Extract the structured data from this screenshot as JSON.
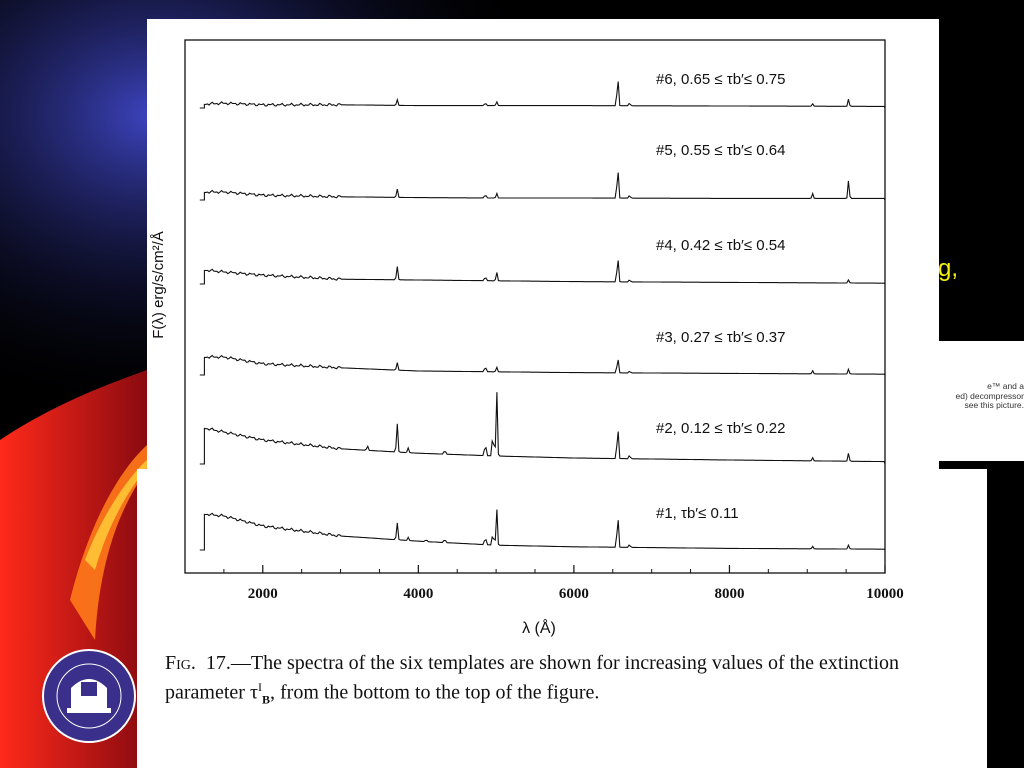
{
  "slide": {
    "bleed_text": "g,",
    "quicktime_lines": [
      "e™ and a",
      "ed) decompressor",
      "see this picture."
    ],
    "logo_text": "MAX-PLANCK-INSTITUT FÜR ASTRONOMIE HEIDELBERG · CENTRO ASTRONÓMICO HISPANO ALEMÁN ALMERÍA"
  },
  "colors": {
    "background": "#000000",
    "swoosh_red": "#e0141a",
    "swoosh_orange": "#ff7a1a",
    "swoosh_blue": "#2a2f9c",
    "text_yellow": "#f5f10a",
    "logo_purple": "#3a2f8a"
  },
  "figure": {
    "caption_label": "Fig.",
    "caption_number": "17.",
    "caption_text": "—The spectra of the six templates are shown for increasing values of the extinction parameter τ",
    "caption_sup": "I",
    "caption_sub": "B",
    "caption_end": ", from the bottom to the top of the figure."
  },
  "chart_data": {
    "type": "line",
    "title": "",
    "xlabel": "λ (Å)",
    "ylabel": "F(λ) erg/s/cm²/Å",
    "xlim": [
      1000,
      10000
    ],
    "xticks": [
      2000,
      4000,
      6000,
      8000,
      10000
    ],
    "xtick_labels": [
      "2000",
      "4000",
      "6000",
      "8000",
      "10000"
    ],
    "grid": false,
    "series": [
      {
        "name": "#1, τb′≤ 0.11",
        "label": "#1, τb′≤ 0.11",
        "start": 1250,
        "end": 10000,
        "offset": 0.0,
        "continuum": [
          [
            1250,
            0.9
          ],
          [
            1500,
            0.85
          ],
          [
            2000,
            0.6
          ],
          [
            3000,
            0.35
          ],
          [
            4000,
            0.22
          ],
          [
            5000,
            0.12
          ],
          [
            6000,
            0.08
          ],
          [
            8000,
            0.04
          ],
          [
            10000,
            0.02
          ]
        ],
        "lines": [
          [
            3727,
            0.45
          ],
          [
            3869,
            0.08
          ],
          [
            4101,
            0.06
          ],
          [
            4340,
            0.1
          ],
          [
            4861,
            0.22
          ],
          [
            4959,
            0.35
          ],
          [
            5007,
            0.95
          ],
          [
            6563,
            0.95
          ],
          [
            6717,
            0.08
          ],
          [
            9069,
            0.06
          ],
          [
            9532,
            0.1
          ]
        ]
      },
      {
        "name": "#2, 0.12 ≤ τb′≤ 0.22",
        "label": "#2, 0.12 ≤ τb′≤ 0.22",
        "start": 1250,
        "end": 10000,
        "offset": 0.0,
        "continuum": [
          [
            1250,
            0.9
          ],
          [
            1500,
            0.8
          ],
          [
            2000,
            0.6
          ],
          [
            3000,
            0.38
          ],
          [
            4000,
            0.27
          ],
          [
            5000,
            0.2
          ],
          [
            6000,
            0.15
          ],
          [
            8000,
            0.1
          ],
          [
            10000,
            0.06
          ]
        ],
        "lines": [
          [
            3345,
            0.12
          ],
          [
            3727,
            0.75
          ],
          [
            3869,
            0.12
          ],
          [
            4340,
            0.12
          ],
          [
            4861,
            0.35
          ],
          [
            4959,
            0.65
          ],
          [
            5007,
            1.7
          ],
          [
            6563,
            0.95
          ],
          [
            6717,
            0.1
          ],
          [
            9069,
            0.08
          ],
          [
            9532,
            0.2
          ]
        ]
      },
      {
        "name": "#3, 0.27 ≤ τb′≤ 0.37",
        "label": "#3, 0.27 ≤ τb′≤ 0.37",
        "start": 1250,
        "end": 10000,
        "offset": 0.0,
        "continuum": [
          [
            1250,
            0.45
          ],
          [
            1500,
            0.45
          ],
          [
            2000,
            0.28
          ],
          [
            3000,
            0.18
          ],
          [
            4000,
            0.1
          ],
          [
            5000,
            0.08
          ],
          [
            6000,
            0.06
          ],
          [
            8000,
            0.04
          ],
          [
            10000,
            0.02
          ]
        ],
        "lines": [
          [
            3727,
            0.2
          ],
          [
            4861,
            0.15
          ],
          [
            5007,
            0.12
          ],
          [
            6563,
            0.45
          ],
          [
            6717,
            0.05
          ],
          [
            9069,
            0.08
          ],
          [
            9532,
            0.12
          ]
        ]
      },
      {
        "name": "#4, 0.42 ≤ τb′≤ 0.54",
        "label": "#4, 0.42 ≤ τb′≤ 0.54",
        "start": 1250,
        "end": 10000,
        "offset": 0.0,
        "continuum": [
          [
            1250,
            0.35
          ],
          [
            1500,
            0.3
          ],
          [
            2000,
            0.22
          ],
          [
            3000,
            0.12
          ],
          [
            4000,
            0.1
          ],
          [
            5000,
            0.08
          ],
          [
            6000,
            0.06
          ],
          [
            8000,
            0.04
          ],
          [
            10000,
            0.02
          ]
        ],
        "lines": [
          [
            3727,
            0.35
          ],
          [
            4861,
            0.12
          ],
          [
            5007,
            0.22
          ],
          [
            6563,
            0.75
          ],
          [
            6717,
            0.06
          ],
          [
            9532,
            0.08
          ]
        ]
      },
      {
        "name": "#5, 0.55 ≤ τb′≤ 0.64",
        "label": "#5, 0.55 ≤ τb′≤ 0.64",
        "start": 1250,
        "end": 10000,
        "offset": 0.0,
        "continuum": [
          [
            1250,
            0.2
          ],
          [
            1500,
            0.2
          ],
          [
            2000,
            0.12
          ],
          [
            3000,
            0.08
          ],
          [
            4000,
            0.06
          ],
          [
            5000,
            0.05
          ],
          [
            6000,
            0.05
          ],
          [
            8000,
            0.04
          ],
          [
            10000,
            0.04
          ]
        ],
        "lines": [
          [
            3727,
            0.22
          ],
          [
            4861,
            0.1
          ],
          [
            5007,
            0.12
          ],
          [
            6563,
            0.9
          ],
          [
            6717,
            0.08
          ],
          [
            9069,
            0.12
          ],
          [
            9532,
            0.45
          ]
        ]
      },
      {
        "name": "#6, 0.65 ≤ τb′≤ 0.75",
        "label": "#6, 0.65 ≤ τb′≤ 0.75",
        "start": 1250,
        "end": 10000,
        "offset": 0.0,
        "continuum": [
          [
            1250,
            0.1
          ],
          [
            1500,
            0.12
          ],
          [
            2000,
            0.08
          ],
          [
            3000,
            0.08
          ],
          [
            4000,
            0.06
          ],
          [
            5000,
            0.06
          ],
          [
            6000,
            0.06
          ],
          [
            8000,
            0.05
          ],
          [
            10000,
            0.04
          ]
        ],
        "lines": [
          [
            3727,
            0.15
          ],
          [
            4861,
            0.08
          ],
          [
            5007,
            0.1
          ],
          [
            6563,
            0.85
          ],
          [
            6717,
            0.08
          ],
          [
            9069,
            0.06
          ],
          [
            9532,
            0.18
          ]
        ]
      }
    ]
  }
}
